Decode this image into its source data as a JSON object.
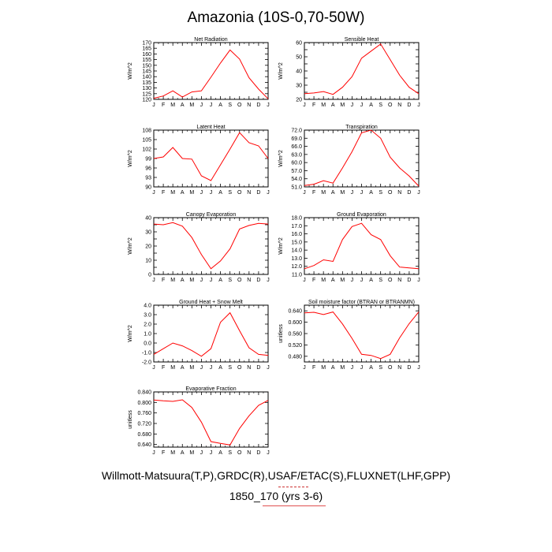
{
  "title": "Amazonia (10S-0,70-50W)",
  "footer": {
    "line1": "Willmott-Matsuura(T,P),GRDC(R),USAF/ETAC(S),FLUXNET(LHF,GPP)",
    "line2": "1850_170 (yrs 3-6)"
  },
  "colors": {
    "line": "#ff0000",
    "axis": "#000000"
  },
  "chart_data": [
    {
      "type": "line",
      "title": "Net Radiation",
      "ylabel": "W/m^2",
      "categories": [
        "J",
        "F",
        "M",
        "A",
        "M",
        "J",
        "J",
        "A",
        "S",
        "O",
        "N",
        "D",
        "J"
      ],
      "ylim": [
        120,
        170
      ],
      "yticks": [
        120,
        125,
        130,
        135,
        140,
        145,
        150,
        155,
        160,
        165,
        170
      ],
      "yticklabels": [
        "120",
        "125",
        "130",
        "135",
        "140",
        "145",
        "150",
        "155",
        "160",
        "165",
        "170"
      ],
      "values": [
        121,
        123,
        127.5,
        122,
        126.5,
        127.5,
        139.5,
        152,
        163.5,
        155.5,
        139,
        129,
        120.5
      ]
    },
    {
      "type": "line",
      "title": "Sensible Heat",
      "ylabel": "W/m^2",
      "categories": [
        "J",
        "F",
        "M",
        "A",
        "M",
        "J",
        "J",
        "A",
        "S",
        "O",
        "N",
        "D",
        "J"
      ],
      "ylim": [
        20,
        60
      ],
      "yticks": [
        20,
        25,
        30,
        35,
        40,
        45,
        50,
        55,
        60
      ],
      "yticklabels": [
        "20",
        "",
        "30",
        "",
        "40",
        "",
        "50",
        "",
        "60"
      ],
      "values": [
        24,
        24.5,
        25.5,
        23.5,
        28.5,
        36,
        49,
        54,
        59,
        48,
        37,
        28.5,
        24
      ]
    },
    {
      "type": "line",
      "title": "Latent Heat",
      "ylabel": "W/m^2",
      "categories": [
        "J",
        "F",
        "M",
        "A",
        "M",
        "J",
        "J",
        "A",
        "S",
        "O",
        "N",
        "D",
        "J"
      ],
      "ylim": [
        90,
        108
      ],
      "yticks": [
        90,
        93,
        96,
        99,
        102,
        105,
        108
      ],
      "yticklabels": [
        "90",
        "93",
        "96",
        "99",
        "102",
        "105",
        "108"
      ],
      "values": [
        99,
        99.5,
        102.5,
        99,
        98.8,
        93.5,
        92,
        97,
        102,
        107.2,
        104,
        103,
        99
      ]
    },
    {
      "type": "line",
      "title": "Transpiration",
      "ylabel": "W/m^2",
      "categories": [
        "J",
        "F",
        "M",
        "A",
        "M",
        "J",
        "J",
        "A",
        "S",
        "O",
        "N",
        "D",
        "J"
      ],
      "ylim": [
        51,
        72
      ],
      "yticks": [
        51,
        54,
        57,
        60,
        63,
        66,
        69,
        72
      ],
      "yticklabels": [
        "51.0",
        "54.0",
        "57.0",
        "60.0",
        "63.0",
        "66.0",
        "69.0",
        "72.0"
      ],
      "values": [
        51.5,
        52,
        53.3,
        52.4,
        58,
        64,
        71,
        72,
        69,
        62,
        58,
        55,
        51.3
      ]
    },
    {
      "type": "line",
      "title": "Canopy Evaporation",
      "ylabel": "W/m^2",
      "categories": [
        "J",
        "F",
        "M",
        "A",
        "M",
        "J",
        "J",
        "A",
        "S",
        "O",
        "N",
        "D",
        "J"
      ],
      "ylim": [
        0,
        40
      ],
      "yticks": [
        0,
        5,
        10,
        15,
        20,
        25,
        30,
        35,
        40
      ],
      "yticklabels": [
        "0",
        "",
        "10",
        "",
        "20",
        "",
        "30",
        "",
        "40"
      ],
      "values": [
        35.5,
        35,
        36.5,
        34,
        26,
        14,
        4,
        9.5,
        18,
        32,
        34.5,
        36,
        35.5
      ]
    },
    {
      "type": "line",
      "title": "Ground Evaporation",
      "ylabel": "W/m^2",
      "categories": [
        "J",
        "F",
        "M",
        "A",
        "M",
        "J",
        "J",
        "A",
        "S",
        "O",
        "N",
        "D",
        "J"
      ],
      "ylim": [
        11,
        18
      ],
      "yticks": [
        11,
        12,
        13,
        14,
        15,
        16,
        17,
        18
      ],
      "yticklabels": [
        "11.0",
        "12.0",
        "13.0",
        "14.0",
        "15.0",
        "16.0",
        "17.0",
        "18.0"
      ],
      "values": [
        11.7,
        12.1,
        12.8,
        12.6,
        15.3,
        16.9,
        17.3,
        15.9,
        15.3,
        13.3,
        11.9,
        11.8,
        11.7
      ]
    },
    {
      "type": "line",
      "title": "Ground Heat + Snow Melt",
      "ylabel": "W/m^2",
      "categories": [
        "J",
        "F",
        "M",
        "A",
        "M",
        "J",
        "J",
        "A",
        "S",
        "O",
        "N",
        "D",
        "J"
      ],
      "ylim": [
        -2,
        4
      ],
      "yticks": [
        -2,
        -1,
        0,
        1,
        2,
        3,
        4
      ],
      "yticklabels": [
        "-2.0",
        "-1.0",
        "0.0",
        "1.0",
        "2.0",
        "3.0",
        "4.0"
      ],
      "values": [
        -1.2,
        -0.6,
        0,
        -0.3,
        -0.8,
        -1.4,
        -0.6,
        2.2,
        3.2,
        1.3,
        -0.5,
        -1.2,
        -1.3
      ]
    },
    {
      "type": "line",
      "title": "Soil moisture factor (BTRAN or BTRANMN)",
      "ylabel": "unitless",
      "categories": [
        "J",
        "F",
        "M",
        "A",
        "M",
        "J",
        "J",
        "A",
        "S",
        "O",
        "N",
        "D",
        "J"
      ],
      "ylim": [
        0.46,
        0.66
      ],
      "yticks": [
        0.48,
        0.52,
        0.56,
        0.6,
        0.64
      ],
      "yticklabels": [
        "0.480",
        "0.520",
        "0.560",
        "0.600",
        "0.640"
      ],
      "values": [
        0.633,
        0.635,
        0.627,
        0.636,
        0.594,
        0.543,
        0.487,
        0.483,
        0.472,
        0.487,
        0.545,
        0.595,
        0.636
      ]
    },
    {
      "type": "line",
      "title": "Evaporative Fraction",
      "ylabel": "unitless",
      "categories": [
        "J",
        "F",
        "M",
        "A",
        "M",
        "J",
        "J",
        "A",
        "S",
        "O",
        "N",
        "D",
        "J"
      ],
      "ylim": [
        0.63,
        0.84
      ],
      "yticks": [
        0.64,
        0.68,
        0.72,
        0.76,
        0.8,
        0.84
      ],
      "yticklabels": [
        "0.640",
        "0.680",
        "0.720",
        "0.760",
        "0.800",
        "0.840"
      ],
      "values": [
        0.809,
        0.806,
        0.804,
        0.81,
        0.781,
        0.725,
        0.651,
        0.644,
        0.638,
        0.701,
        0.749,
        0.789,
        0.808
      ]
    }
  ]
}
